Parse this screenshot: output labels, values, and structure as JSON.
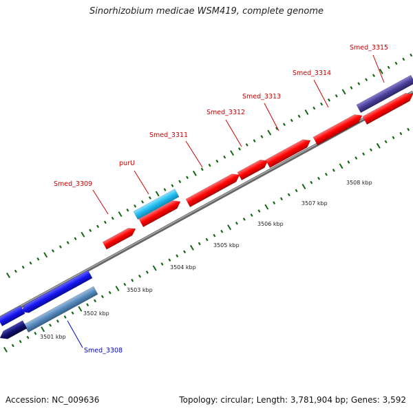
{
  "title": "Sinorhizobium medicae WSM419, complete genome",
  "footer": {
    "accession": "Accession: NC_009636",
    "summary": "Topology: circular; Length: 3,781,904 bp; Genes: 3,592"
  },
  "scale_labels": [
    "3501 kbp",
    "3502 kbp",
    "3503 kbp",
    "3504 kbp",
    "3505 kbp",
    "3506 kbp",
    "3507 kbp",
    "3508 kbp"
  ],
  "gene_labels": [
    "Smed_3308",
    "Smed_3309",
    "purU",
    "Smed_3311",
    "Smed_3312",
    "Smed_3313",
    "Smed_3314",
    "Smed_3315"
  ],
  "colors": {
    "red_gene": "#ff0000",
    "light_blue_gene": "#22bbee",
    "blue_gene": "#1515ee",
    "steel_blue_gene": "#5588bb",
    "navy_gene": "#101070",
    "purple_gene": "#4a3f98",
    "backbone": "#888888",
    "tick": "#116611",
    "label_red": "#cc0000",
    "label_blue": "#0000cc"
  }
}
